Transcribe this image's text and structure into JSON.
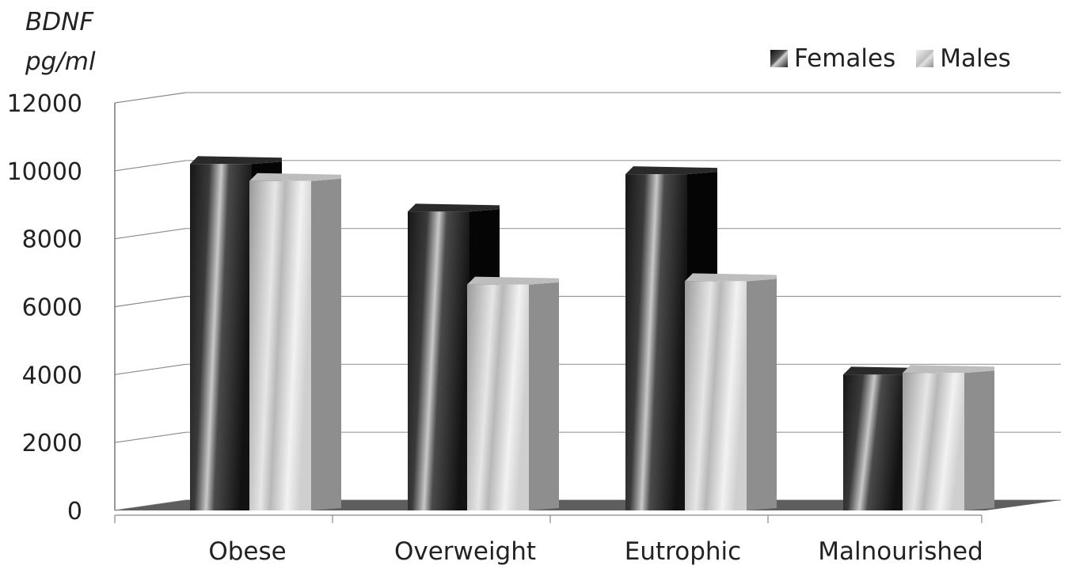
{
  "chart_data": {
    "type": "bar",
    "ylabel_line1": "BDNF",
    "ylabel_line2": "pg/ml",
    "categories": [
      "Obese",
      "Overweight",
      "Eutrophic",
      "Malnourished"
    ],
    "series": [
      {
        "name": "Females",
        "values": [
          10200,
          8800,
          9900,
          4000
        ],
        "color": "#1a1a1a"
      },
      {
        "name": "Males",
        "values": [
          9700,
          6650,
          6750,
          4050
        ],
        "color": "#d9d9d9"
      }
    ],
    "ylim": [
      0,
      12000
    ],
    "yticks": [
      0,
      2000,
      4000,
      6000,
      8000,
      10000,
      12000
    ],
    "grid": true,
    "legend_position": "top-right",
    "style": "3d-columns"
  }
}
